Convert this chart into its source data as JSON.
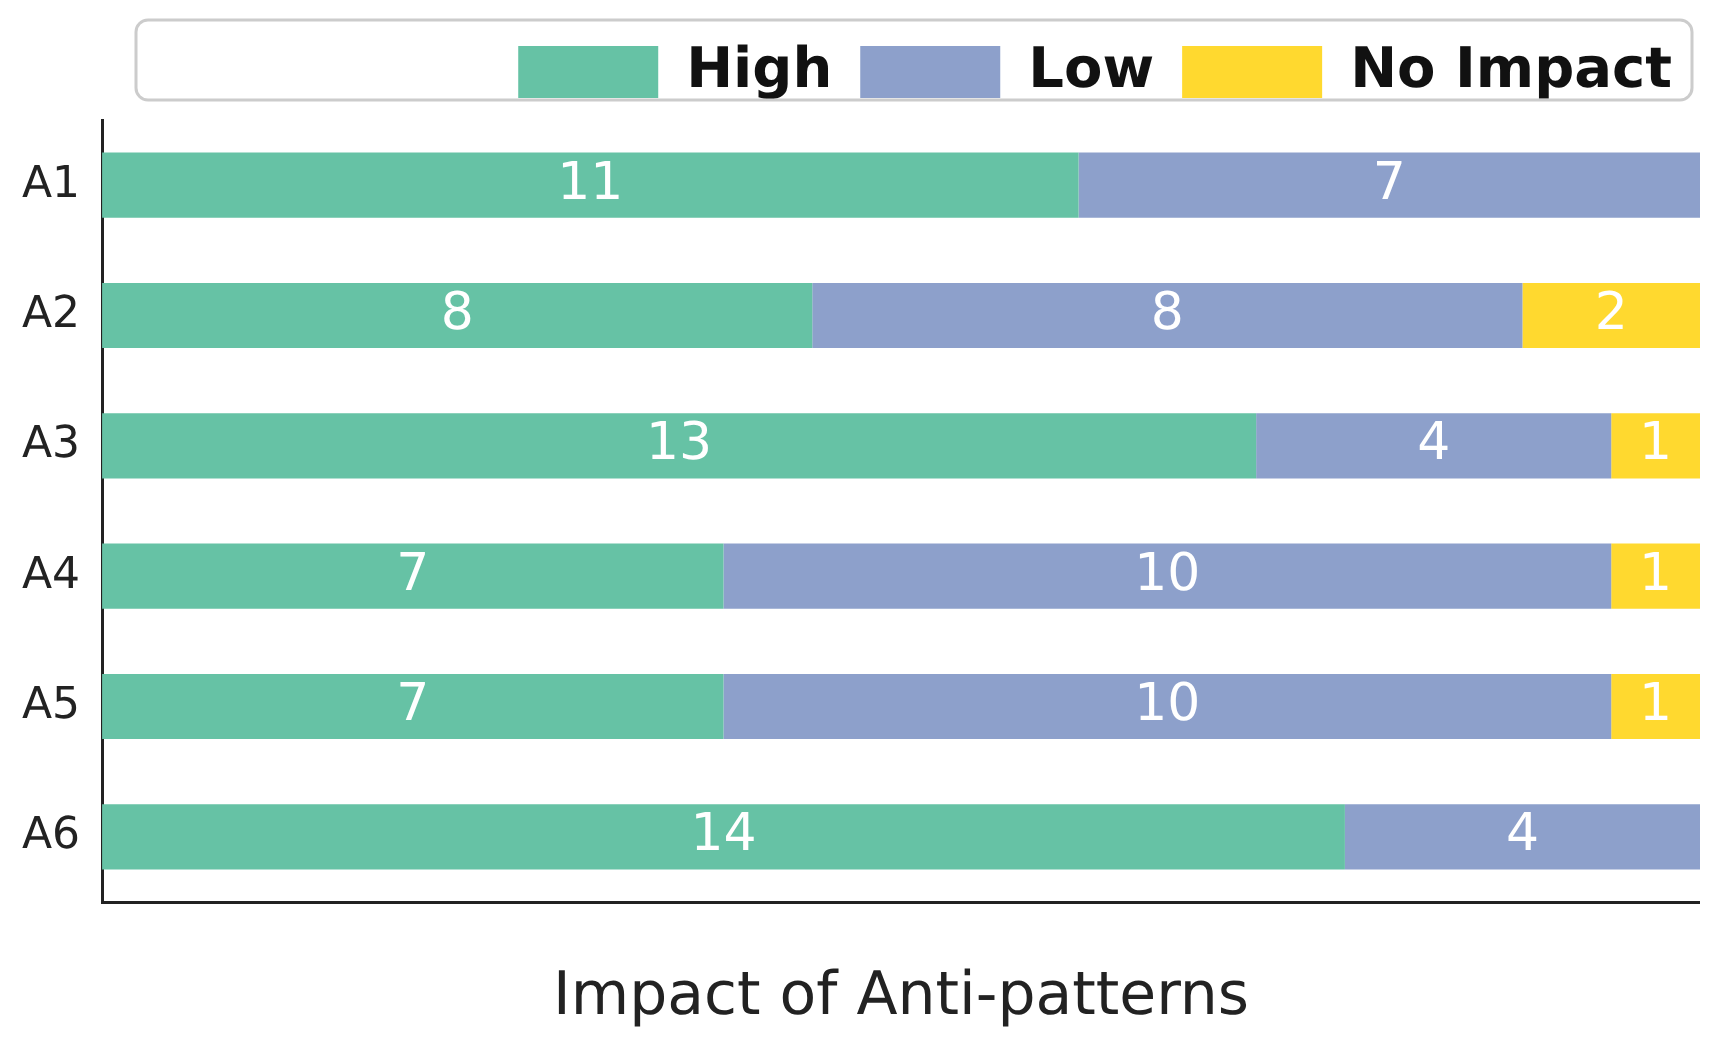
{
  "chart_data": {
    "type": "bar",
    "orientation": "horizontal",
    "stacked": true,
    "xlabel": "Impact of Anti-patterns",
    "categories": [
      "A1",
      "A2",
      "A3",
      "A4",
      "A5",
      "A6"
    ],
    "series": [
      {
        "name": "High",
        "color": "#66c2a5",
        "values": [
          11,
          8,
          13,
          7,
          7,
          14
        ]
      },
      {
        "name": "Low",
        "color": "#8da0cb",
        "values": [
          7,
          8,
          4,
          10,
          10,
          4
        ]
      },
      {
        "name": "No Impact",
        "color": "#ffd92f",
        "values": [
          null,
          2,
          1,
          1,
          1,
          null
        ]
      }
    ],
    "xlim": [
      0,
      18
    ],
    "tick_labels": "y",
    "data_labels": true,
    "legend": "top",
    "grid": false
  }
}
